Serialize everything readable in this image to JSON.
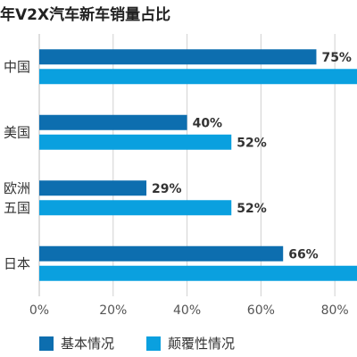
{
  "title": "年V2X汽车新车销量占比",
  "chart_data": {
    "type": "bar",
    "orientation": "horizontal",
    "categories": [
      "中国",
      "美国",
      "欧洲\n五国",
      "日本"
    ],
    "series": [
      {
        "name": "基本情况",
        "values": [
          75,
          40,
          29,
          66
        ],
        "value_labels": [
          "75%",
          "40%",
          "29%",
          "66%"
        ],
        "color": "#0d6eaf"
      },
      {
        "name": "颠覆性情况",
        "values": [
          88,
          52,
          52,
          88
        ],
        "value_labels": [
          "",
          "52%",
          "52%",
          ""
        ],
        "color": "#0aa0df"
      }
    ],
    "xlim": [
      0,
      86
    ],
    "x_ticks": [
      0,
      20,
      40,
      60,
      80
    ],
    "x_tick_labels": [
      "0%",
      "20%",
      "40%",
      "60%",
      "80%"
    ],
    "grid": "vertical",
    "legend_position": "bottom-left"
  }
}
